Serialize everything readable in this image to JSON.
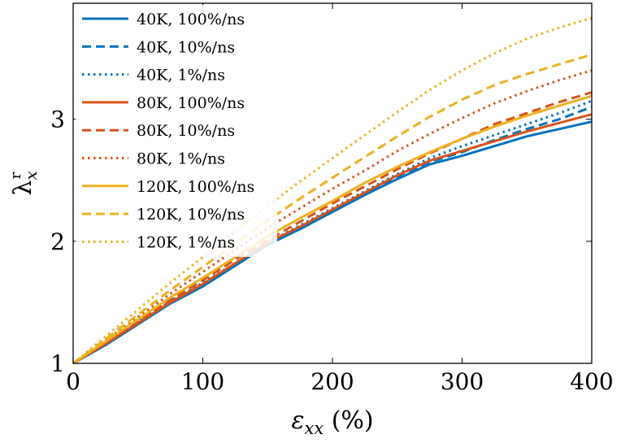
{
  "chart_data": {
    "type": "line",
    "xlabel": "ε_xx (%)",
    "ylabel": "λ_x^r",
    "xlim": [
      0,
      400
    ],
    "ylim": [
      1,
      3.95
    ],
    "xticks": [
      0,
      100,
      200,
      300,
      400
    ],
    "xtick_labels": [
      "0",
      "100",
      "200",
      "300",
      "400"
    ],
    "yticks": [
      1,
      2,
      3
    ],
    "ytick_labels": [
      "1",
      "2",
      "3"
    ],
    "grid": false,
    "legend_position": "top-left",
    "series": [
      {
        "name": "40K, 100%/ns",
        "color": "#0072BD",
        "dash": "solid",
        "x": [
          0,
          25,
          50,
          75,
          100,
          125,
          150,
          175,
          200,
          225,
          250,
          275,
          300,
          325,
          350,
          375,
          400
        ],
        "y": [
          1.0,
          1.15,
          1.32,
          1.49,
          1.63,
          1.8,
          1.97,
          2.1,
          2.24,
          2.38,
          2.51,
          2.63,
          2.7,
          2.78,
          2.86,
          2.92,
          2.98
        ]
      },
      {
        "name": "40K, 10%/ns",
        "color": "#0072BD",
        "dash": "dashed",
        "x": [
          0,
          25,
          50,
          75,
          100,
          125,
          150,
          175,
          200,
          225,
          250,
          275,
          300,
          325,
          350,
          375,
          400
        ],
        "y": [
          1.0,
          1.16,
          1.33,
          1.5,
          1.65,
          1.81,
          1.98,
          2.11,
          2.25,
          2.39,
          2.52,
          2.65,
          2.73,
          2.83,
          2.92,
          3.0,
          3.1
        ]
      },
      {
        "name": "40K, 1%/ns",
        "color": "#0072BD",
        "dash": "dotted",
        "x": [
          0,
          25,
          50,
          75,
          100,
          125,
          150,
          175,
          200,
          225,
          250,
          275,
          300,
          325,
          350,
          375,
          400
        ],
        "y": [
          1.0,
          1.16,
          1.34,
          1.51,
          1.66,
          1.82,
          1.99,
          2.13,
          2.27,
          2.41,
          2.55,
          2.68,
          2.78,
          2.87,
          2.96,
          3.05,
          3.15
        ]
      },
      {
        "name": "80K, 100%/ns",
        "color": "#D95319",
        "dash": "solid",
        "x": [
          0,
          25,
          50,
          75,
          100,
          125,
          150,
          175,
          200,
          225,
          250,
          275,
          300,
          325,
          350,
          375,
          400
        ],
        "y": [
          1.0,
          1.16,
          1.33,
          1.5,
          1.65,
          1.82,
          1.99,
          2.12,
          2.26,
          2.4,
          2.54,
          2.66,
          2.74,
          2.82,
          2.9,
          2.97,
          3.04
        ]
      },
      {
        "name": "80K, 10%/ns",
        "color": "#D95319",
        "dash": "dashed",
        "x": [
          0,
          25,
          50,
          75,
          100,
          125,
          150,
          175,
          200,
          225,
          250,
          275,
          300,
          325,
          350,
          375,
          400
        ],
        "y": [
          1.0,
          1.17,
          1.35,
          1.52,
          1.68,
          1.85,
          2.01,
          2.16,
          2.31,
          2.45,
          2.59,
          2.72,
          2.84,
          2.96,
          3.05,
          3.14,
          3.22
        ]
      },
      {
        "name": "80K, 1%/ns",
        "color": "#D95319",
        "dash": "dotted",
        "x": [
          0,
          25,
          50,
          75,
          100,
          125,
          150,
          175,
          200,
          225,
          250,
          275,
          300,
          325,
          350,
          375,
          400
        ],
        "y": [
          1.0,
          1.19,
          1.38,
          1.57,
          1.75,
          1.93,
          2.11,
          2.27,
          2.43,
          2.58,
          2.74,
          2.88,
          3.01,
          3.13,
          3.23,
          3.32,
          3.4
        ]
      },
      {
        "name": "120K, 100%/ns",
        "color": "#EDB120",
        "dash": "solid",
        "x": [
          0,
          25,
          50,
          75,
          100,
          125,
          150,
          175,
          200,
          225,
          250,
          275,
          300,
          325,
          350,
          375,
          400
        ],
        "y": [
          1.0,
          1.18,
          1.36,
          1.54,
          1.7,
          1.87,
          2.04,
          2.19,
          2.33,
          2.48,
          2.61,
          2.73,
          2.84,
          2.94,
          3.03,
          3.11,
          3.19
        ]
      },
      {
        "name": "120K, 10%/ns",
        "color": "#EDB120",
        "dash": "dashed",
        "x": [
          0,
          25,
          50,
          75,
          100,
          125,
          150,
          175,
          200,
          225,
          250,
          275,
          300,
          325,
          350,
          375,
          400
        ],
        "y": [
          1.0,
          1.2,
          1.4,
          1.6,
          1.79,
          1.98,
          2.17,
          2.35,
          2.52,
          2.69,
          2.86,
          3.02,
          3.16,
          3.28,
          3.37,
          3.45,
          3.53
        ]
      },
      {
        "name": "120K, 1%/ns",
        "color": "#EDB120",
        "dash": "dotted",
        "x": [
          0,
          25,
          50,
          75,
          100,
          125,
          150,
          175,
          200,
          225,
          250,
          275,
          300,
          325,
          350,
          375,
          400
        ],
        "y": [
          1.0,
          1.22,
          1.44,
          1.66,
          1.87,
          2.08,
          2.29,
          2.49,
          2.68,
          2.87,
          3.06,
          3.24,
          3.4,
          3.54,
          3.66,
          3.75,
          3.83
        ]
      }
    ]
  }
}
